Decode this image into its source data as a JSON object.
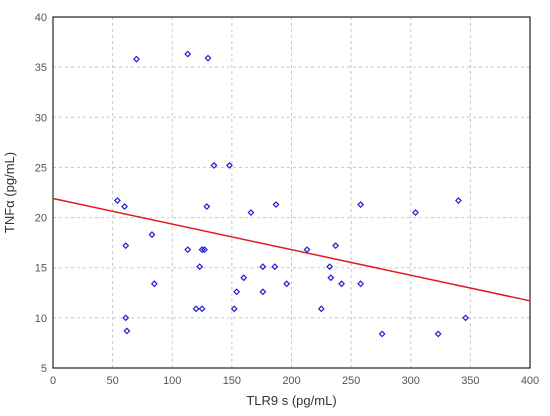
{
  "chart_data": {
    "type": "scatter",
    "xlabel": "TLR9 s (pg/mL)",
    "ylabel": "TNFα (pg/mL)",
    "xlim": [
      0,
      400
    ],
    "ylim": [
      5,
      40
    ],
    "x_ticks": [
      0,
      50,
      100,
      150,
      200,
      250,
      300,
      350,
      400
    ],
    "y_ticks": [
      5,
      10,
      15,
      20,
      25,
      30,
      35,
      40
    ],
    "grid": true,
    "marker_shape": "diamond",
    "marker_color": "#1f1fd0",
    "trendline_color": "#e31a1c",
    "series": [
      {
        "points": [
          [
            54,
            21.7
          ],
          [
            60,
            21.1
          ],
          [
            61,
            17.2
          ],
          [
            61,
            10.0
          ],
          [
            62,
            8.7
          ],
          [
            70,
            35.8
          ],
          [
            83,
            18.3
          ],
          [
            85,
            13.4
          ],
          [
            113,
            36.3
          ],
          [
            113,
            16.8
          ],
          [
            120,
            10.9
          ],
          [
            123,
            15.1
          ],
          [
            125,
            10.9
          ],
          [
            125,
            16.8
          ],
          [
            127,
            16.8
          ],
          [
            129,
            21.1
          ],
          [
            130,
            35.9
          ],
          [
            135,
            25.2
          ],
          [
            148,
            25.2
          ],
          [
            152,
            10.9
          ],
          [
            154,
            12.6
          ],
          [
            160,
            14.0
          ],
          [
            166,
            20.5
          ],
          [
            176,
            15.1
          ],
          [
            176,
            12.6
          ],
          [
            186,
            15.1
          ],
          [
            187,
            21.3
          ],
          [
            196,
            13.4
          ],
          [
            213,
            16.8
          ],
          [
            225,
            10.9
          ],
          [
            232,
            15.1
          ],
          [
            233,
            14.0
          ],
          [
            237,
            17.2
          ],
          [
            242,
            13.4
          ],
          [
            258,
            21.3
          ],
          [
            258,
            13.4
          ],
          [
            276,
            8.4
          ],
          [
            304,
            20.5
          ],
          [
            323,
            8.4
          ],
          [
            340,
            21.7
          ],
          [
            346,
            10.0
          ]
        ]
      }
    ],
    "trendline": {
      "x": [
        0,
        400
      ],
      "y": [
        21.9,
        11.7
      ]
    }
  }
}
